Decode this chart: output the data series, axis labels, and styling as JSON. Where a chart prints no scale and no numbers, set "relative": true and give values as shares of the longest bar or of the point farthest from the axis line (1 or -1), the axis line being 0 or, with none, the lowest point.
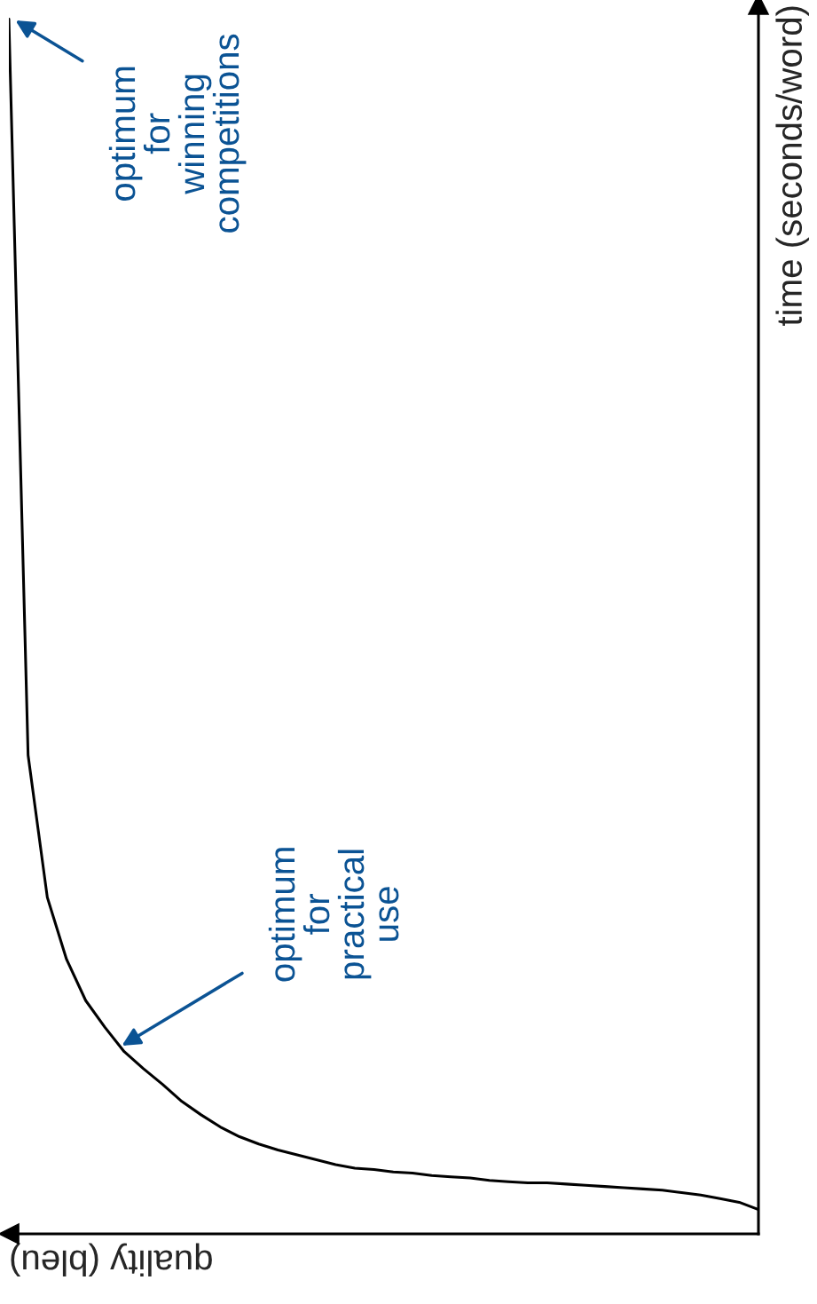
{
  "chart_data": {
    "type": "line",
    "relative": true,
    "xlabel": "quality (bleu)",
    "ylabel": "time (seconds/word)",
    "categories": [
      null,
      null,
      null,
      null,
      null,
      null,
      null,
      null,
      null,
      null,
      null,
      null,
      null,
      null,
      null,
      null,
      null,
      null,
      null,
      null,
      null,
      null,
      null,
      null,
      null,
      null,
      null,
      null,
      null,
      null,
      null,
      null,
      null,
      null,
      null,
      null,
      null,
      null,
      null,
      null
    ],
    "series": [
      {
        "color": "#000000",
        "values": [
          1.0,
          0.394,
          0.277,
          0.226,
          0.192,
          0.17,
          0.15,
          0.136,
          0.123,
          0.109,
          0.098,
          0.088,
          0.08,
          0.074,
          0.069,
          0.065,
          0.061,
          0.057,
          0.054,
          0.053,
          0.051,
          0.05,
          0.048,
          0.047,
          0.046,
          0.044,
          0.043,
          0.042,
          0.042,
          0.041,
          0.04,
          0.039,
          0.038,
          0.037,
          0.036,
          0.034,
          0.032,
          0.029,
          0.026,
          0.02
        ]
      }
    ],
    "annotations": [
      "optimum\nfor\npractical\nuse",
      "optimum\nfor\nwinning\ncompetitions"
    ],
    "legend": false,
    "line_style": "solid",
    "marker": "none"
  }
}
